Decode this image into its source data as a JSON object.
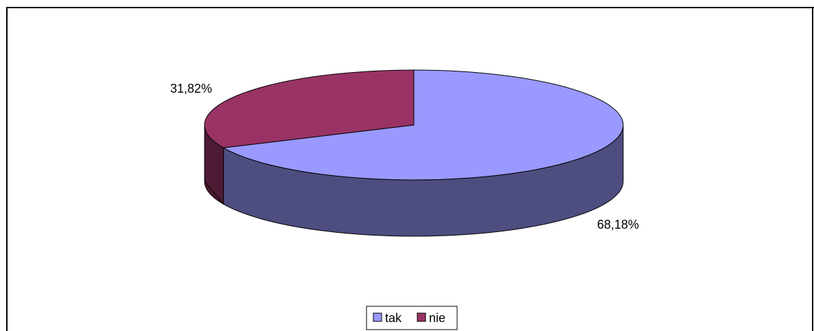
{
  "chart_data": {
    "type": "pie",
    "style": "3d",
    "categories": [
      "tak",
      "nie"
    ],
    "values": [
      68.18,
      31.82
    ],
    "data_labels": [
      "68,18%",
      "31,82%"
    ],
    "colors": {
      "tak": {
        "top": "#9999ff",
        "side": "#4d4d80"
      },
      "nie": {
        "top": "#993366",
        "side": "#4d1a33"
      }
    },
    "legend": {
      "position": "bottom",
      "entries": [
        "tak",
        "nie"
      ]
    },
    "title": ""
  }
}
